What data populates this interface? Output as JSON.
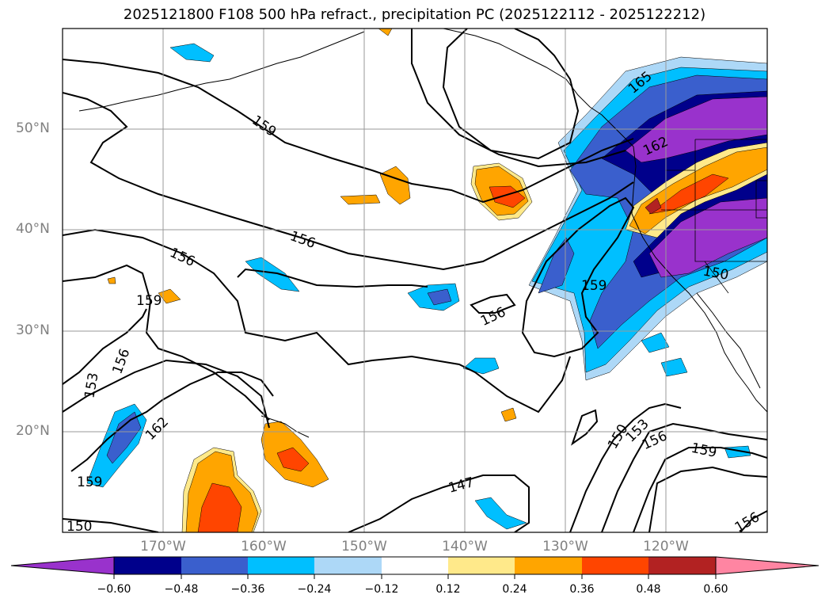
{
  "title": "2025121800 F108 500 hPa refract., precipitation PC (2025122112 - 2025122212)",
  "map": {
    "lat_labels": [
      "50°N",
      "40°N",
      "30°N",
      "20°N"
    ],
    "lon_labels": [
      "170°W",
      "160°W",
      "150°W",
      "140°W",
      "130°W",
      "120°W"
    ],
    "contour_labels": [
      "165",
      "159",
      "162",
      "156",
      "156",
      "159",
      "159",
      "153",
      "156",
      "156",
      "162",
      "159",
      "147",
      "150",
      "153",
      "156",
      "159",
      "156",
      "150",
      "150"
    ]
  },
  "colorbar": {
    "ticks": [
      "−0.60",
      "−0.48",
      "−0.36",
      "−0.24",
      "−0.12",
      "0.12",
      "0.24",
      "0.36",
      "0.48",
      "0.60"
    ],
    "colors": [
      "#9932cc",
      "#00008b",
      "#3a5fcd",
      "#00bfff",
      "#add8f7",
      "#ffffff",
      "#ffe98a",
      "#ffa500",
      "#ff4500",
      "#b22222",
      "#ff85a2"
    ]
  }
}
